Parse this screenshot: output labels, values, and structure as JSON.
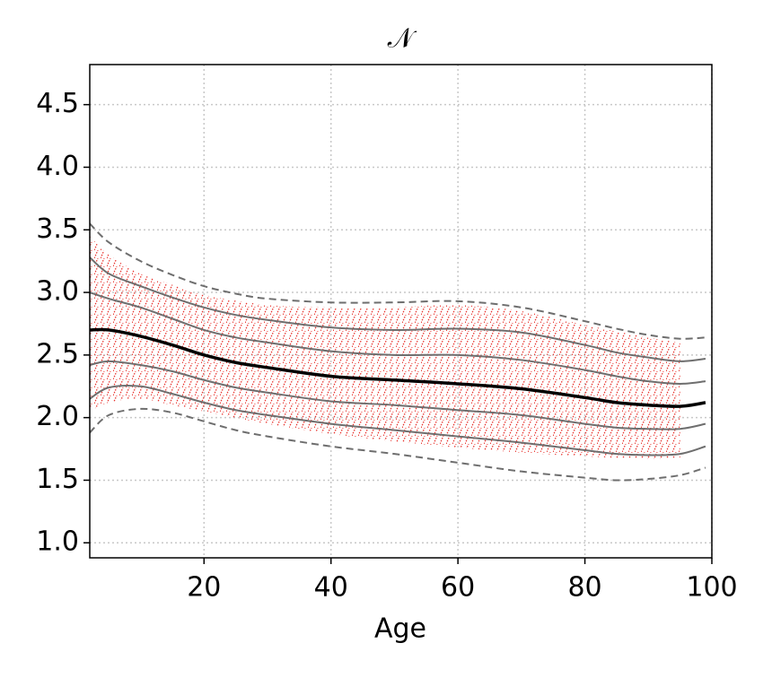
{
  "chart_data": {
    "type": "line",
    "title": "𝒩",
    "x_label": "Age",
    "x": [
      2,
      5,
      10,
      15,
      20,
      25,
      30,
      40,
      50,
      60,
      70,
      80,
      85,
      90,
      95,
      99
    ],
    "series": [
      {
        "color": "#6e6e6e",
        "linestyle": "dashed",
        "linewidth": 2,
        "values": [
          3.55,
          3.4,
          3.25,
          3.14,
          3.05,
          2.99,
          2.95,
          2.92,
          2.92,
          2.93,
          2.88,
          2.77,
          2.71,
          2.66,
          2.63,
          2.64
        ]
      },
      {
        "color": "#6e6e6e",
        "linestyle": "solid",
        "linewidth": 2,
        "values": [
          3.28,
          3.15,
          3.05,
          2.96,
          2.88,
          2.82,
          2.78,
          2.72,
          2.7,
          2.71,
          2.68,
          2.58,
          2.52,
          2.48,
          2.45,
          2.47
        ]
      },
      {
        "color": "#6e6e6e",
        "linestyle": "solid",
        "linewidth": 2,
        "values": [
          3.0,
          2.95,
          2.88,
          2.79,
          2.7,
          2.64,
          2.6,
          2.53,
          2.5,
          2.5,
          2.46,
          2.38,
          2.33,
          2.29,
          2.27,
          2.29
        ]
      },
      {
        "color": "#000000",
        "linestyle": "solid",
        "linewidth": 3.5,
        "values": [
          2.7,
          2.7,
          2.65,
          2.58,
          2.5,
          2.44,
          2.4,
          2.33,
          2.3,
          2.27,
          2.23,
          2.16,
          2.12,
          2.1,
          2.09,
          2.12
        ]
      },
      {
        "color": "#6e6e6e",
        "linestyle": "solid",
        "linewidth": 2,
        "values": [
          2.42,
          2.45,
          2.42,
          2.37,
          2.3,
          2.24,
          2.2,
          2.13,
          2.1,
          2.06,
          2.02,
          1.95,
          1.92,
          1.91,
          1.91,
          1.95
        ]
      },
      {
        "color": "#6e6e6e",
        "linestyle": "solid",
        "linewidth": 2,
        "values": [
          2.15,
          2.24,
          2.25,
          2.19,
          2.12,
          2.06,
          2.02,
          1.95,
          1.9,
          1.85,
          1.8,
          1.74,
          1.71,
          1.7,
          1.71,
          1.77
        ]
      },
      {
        "color": "#6e6e6e",
        "linestyle": "dashed",
        "linewidth": 2,
        "values": [
          1.88,
          2.02,
          2.07,
          2.04,
          1.97,
          1.9,
          1.85,
          1.77,
          1.71,
          1.64,
          1.57,
          1.52,
          1.5,
          1.51,
          1.54,
          1.6
        ]
      }
    ],
    "band": {
      "color": "#e8302a",
      "x": [
        2,
        5,
        10,
        15,
        20,
        30,
        40,
        50,
        60,
        70,
        80,
        90,
        95
      ],
      "upper": [
        3.45,
        3.3,
        3.15,
        3.06,
        2.98,
        2.9,
        2.88,
        2.88,
        2.9,
        2.85,
        2.74,
        2.64,
        2.6
      ],
      "lower": [
        2.05,
        2.12,
        2.15,
        2.1,
        2.05,
        1.95,
        1.87,
        1.81,
        1.76,
        1.72,
        1.69,
        1.67,
        1.68
      ]
    },
    "xlim": [
      2,
      100
    ],
    "ylim": [
      0.88,
      4.82
    ],
    "xticks": [
      20,
      40,
      60,
      80,
      100
    ],
    "yticks": [
      1.0,
      1.5,
      2.0,
      2.5,
      3.0,
      3.5,
      4.0,
      4.5
    ],
    "grid": true
  }
}
